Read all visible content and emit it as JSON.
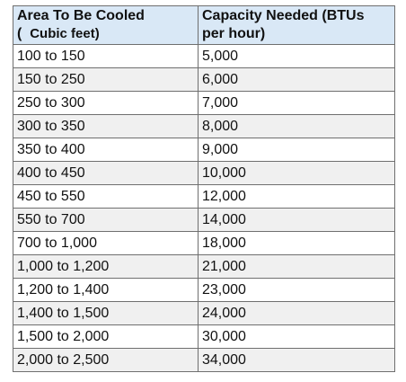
{
  "table": {
    "headers": {
      "col1_line1": "Area To Be Cooled",
      "col1_line2_prefix": "(",
      "col1_line2_unit": "Cubic feet)",
      "col2_line1": "Capacity Needed (BTUs",
      "col2_line2": "per hour)"
    },
    "rows": [
      {
        "area": "100 to 150",
        "capacity": "5,000"
      },
      {
        "area": "150 to 250",
        "capacity": "6,000"
      },
      {
        "area": "250 to 300",
        "capacity": "7,000"
      },
      {
        "area": "300 to 350",
        "capacity": "8,000"
      },
      {
        "area": "350 to 400",
        "capacity": "9,000"
      },
      {
        "area": "400 to 450",
        "capacity": "10,000"
      },
      {
        "area": "450 to 550",
        "capacity": "12,000"
      },
      {
        "area": "550 to 700",
        "capacity": "14,000"
      },
      {
        "area": "700 to 1,000",
        "capacity": "18,000"
      },
      {
        "area": "1,000 to 1,200",
        "capacity": "21,000"
      },
      {
        "area": "1,200 to 1,400",
        "capacity": "23,000"
      },
      {
        "area": "1,400 to 1,500",
        "capacity": "24,000"
      },
      {
        "area": "1,500 to 2,000",
        "capacity": "30,000"
      },
      {
        "area": "2,000 to 2,500",
        "capacity": "34,000"
      }
    ]
  }
}
